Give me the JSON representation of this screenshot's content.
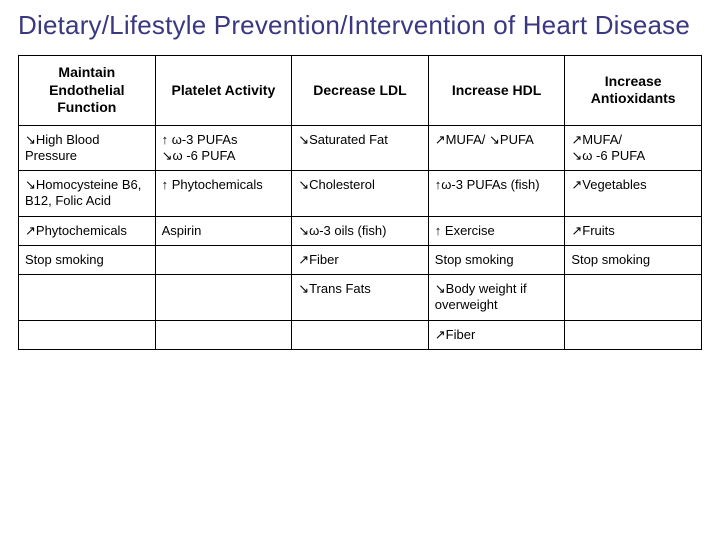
{
  "title": "Dietary/Lifestyle Prevention/Intervention of Heart Disease",
  "table": {
    "headers": [
      "Maintain Endothelial Function",
      "Platelet Activity",
      "Decrease LDL",
      "Increase HDL",
      "Increase Antioxidants"
    ],
    "rows": [
      [
        "↘High Blood Pressure",
        "↑ ω-3 PUFAs\n↘ω -6 PUFA",
        "↘Saturated Fat",
        "↗MUFA/ ↘PUFA",
        "↗MUFA/\n↘ω -6 PUFA"
      ],
      [
        "↘Homocysteine B6, B12, Folic Acid",
        "↑ Phytochemicals",
        "↘Cholesterol",
        "↑ω-3 PUFAs (fish)",
        "↗Vegetables"
      ],
      [
        "↗Phytochemicals",
        "Aspirin",
        "↘ω-3 oils (fish)",
        "↑ Exercise",
        "↗Fruits"
      ],
      [
        "Stop smoking",
        "",
        "↗Fiber",
        "Stop smoking",
        "Stop smoking"
      ],
      [
        "",
        "",
        "↘Trans Fats",
        "↘Body weight if overweight",
        ""
      ],
      [
        "",
        "",
        "",
        "↗Fiber",
        ""
      ]
    ],
    "border_color": "#000000",
    "title_color": "#3a3880",
    "header_fontsize": 14,
    "cell_fontsize": 13
  }
}
